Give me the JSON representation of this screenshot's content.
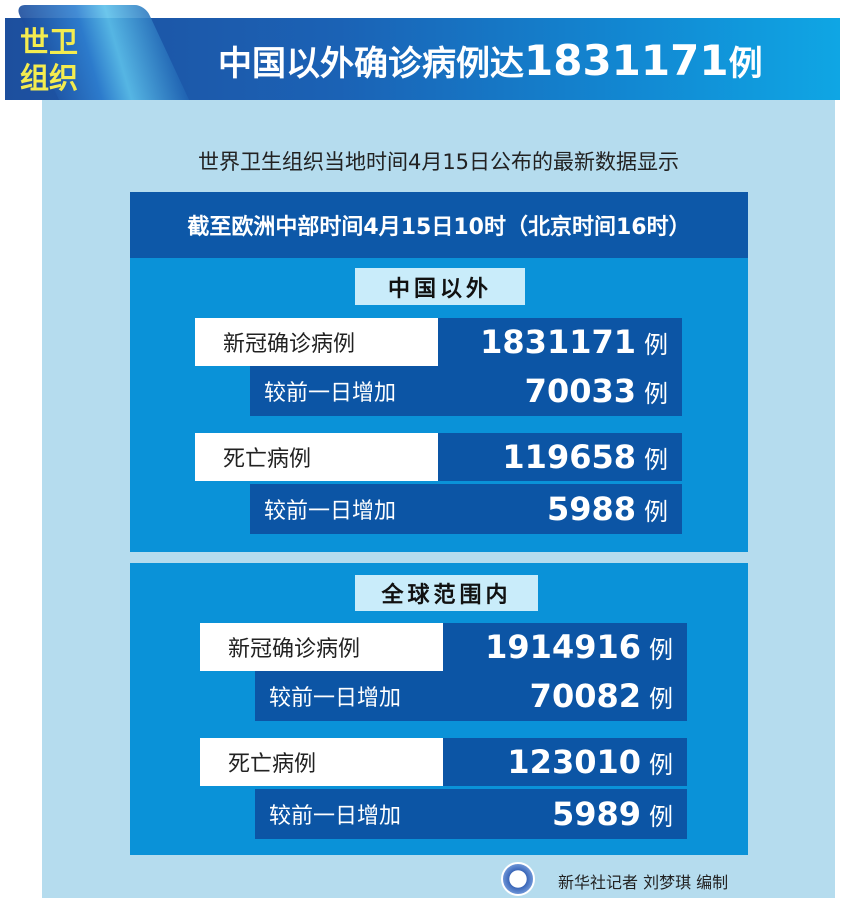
{
  "header": {
    "badge": [
      "世卫",
      "组织"
    ],
    "title_text": "中国以外确诊病例达",
    "title_number": "1831171",
    "title_unit": "例"
  },
  "subtitle": "世界卫生组织当地时间4月15日公布的最新数据显示",
  "date_line": "截至欧洲中部时间4月15日10时（北京时间16时）",
  "sections": [
    {
      "label": "中国以外",
      "rows": [
        {
          "label": "新冠确诊病例",
          "value": "1831171",
          "unit": "例"
        },
        {
          "label": "较前一日增加",
          "value": "70033",
          "unit": "例"
        },
        {
          "label": "死亡病例",
          "value": "119658",
          "unit": "例"
        },
        {
          "label": "较前一日增加",
          "value": "5988",
          "unit": "例"
        }
      ]
    },
    {
      "label": "全球范围内",
      "rows": [
        {
          "label": "新冠确诊病例",
          "value": "1914916",
          "unit": "例"
        },
        {
          "label": "较前一日增加",
          "value": "70082",
          "unit": "例"
        },
        {
          "label": "死亡病例",
          "value": "123010",
          "unit": "例"
        },
        {
          "label": "较前一日增加",
          "value": "5989",
          "unit": "例"
        }
      ]
    }
  ],
  "footer": {
    "credit": "新华社记者 刘梦琪 编制",
    "logo_icon": "xinhua-logo-icon"
  },
  "colors": {
    "dark_blue": "#0c55a5",
    "section_blue": "#0a92d8",
    "panel": "#b5dcee",
    "badge_yellow": "#f4ec4f"
  }
}
